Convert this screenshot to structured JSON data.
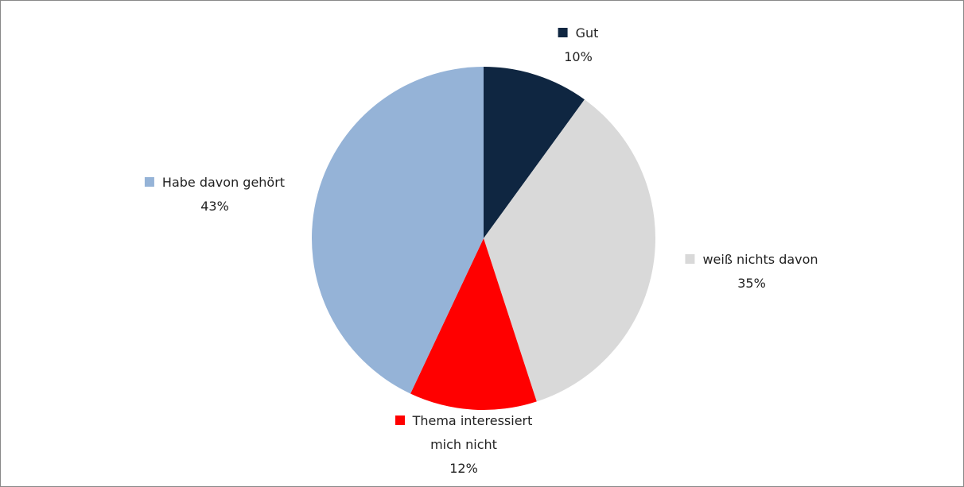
{
  "chart_data": {
    "type": "pie",
    "categories": [
      "Gut",
      "weiß nichts davon",
      "Thema interessiert mich nicht",
      "Habe davon gehört"
    ],
    "values": [
      10,
      35,
      12,
      43
    ],
    "value_labels": [
      "10%",
      "35%",
      "12%",
      "43%"
    ],
    "colors": [
      "#0f2641",
      "#d9d9d9",
      "#ff0000",
      "#95b3d7"
    ]
  }
}
